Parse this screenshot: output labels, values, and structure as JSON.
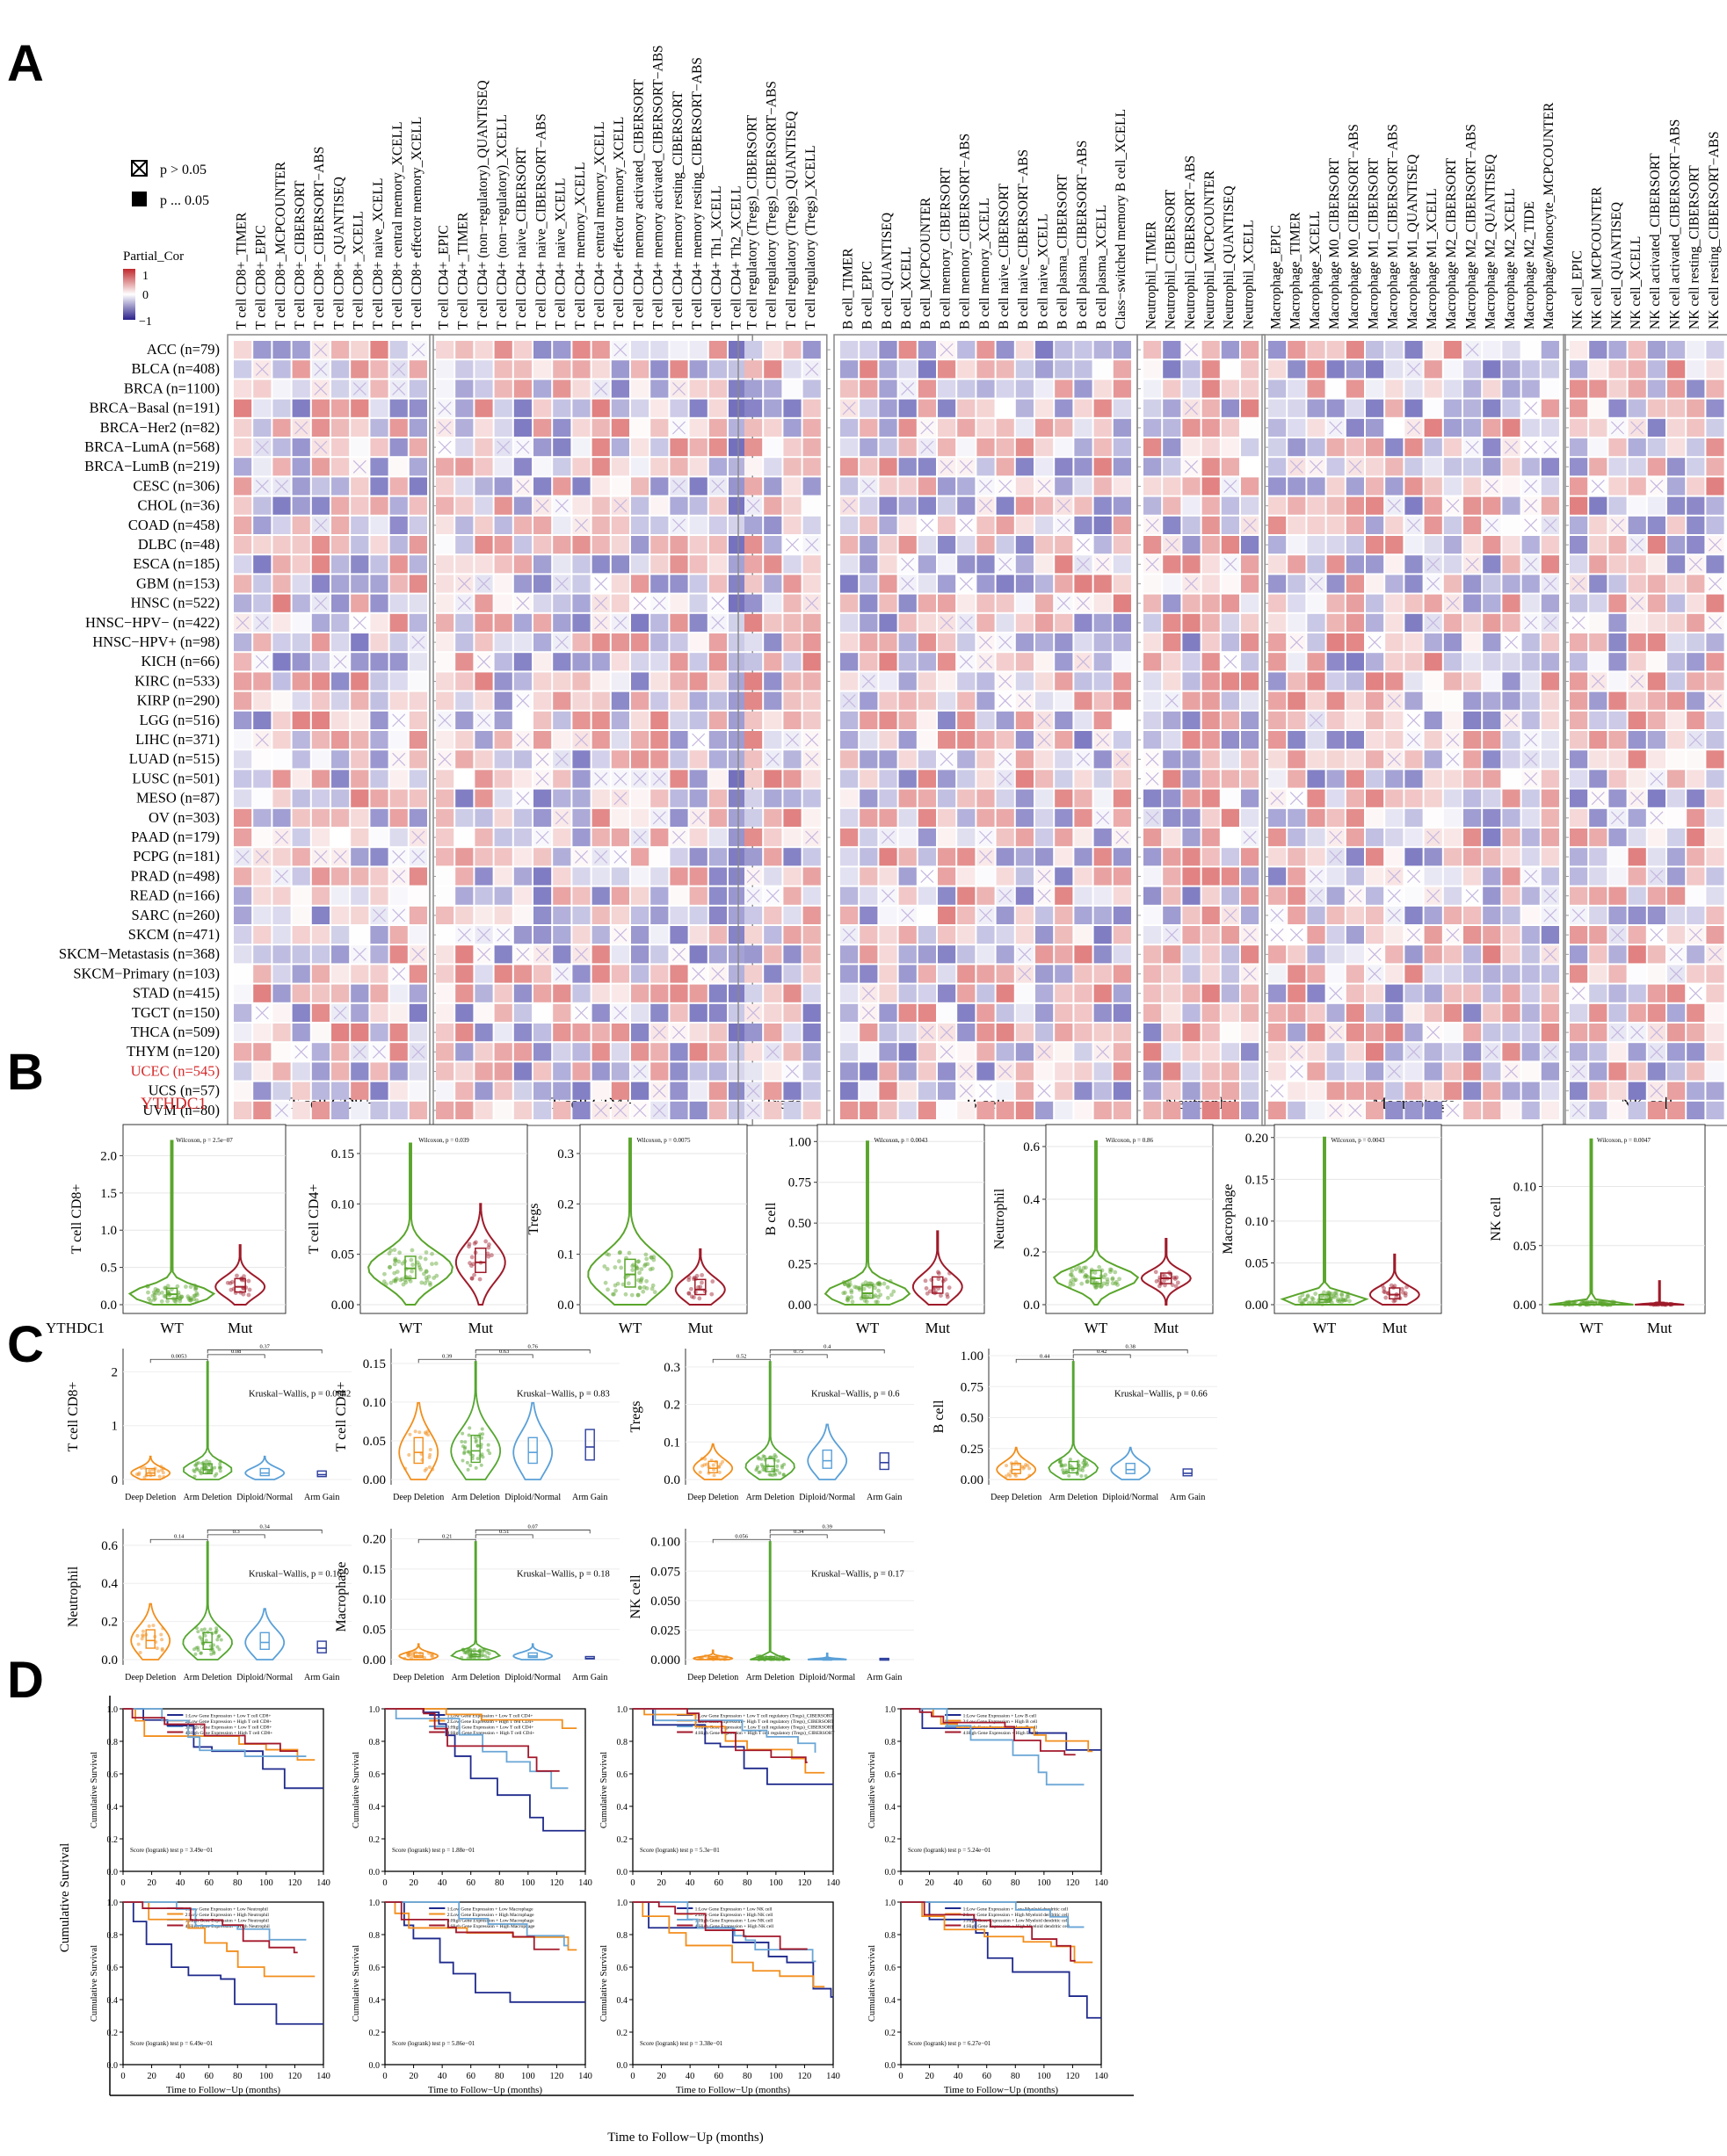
{
  "panel_letters": [
    "A",
    "B",
    "C",
    "D"
  ],
  "gene": "YTHDC1",
  "highlight_color": "#d62728",
  "panel_a": {
    "legend_sig": [
      "p > 0.05",
      "p ... 0.05"
    ],
    "legend_cor_title": "Partial_Cor",
    "legend_cor_ticks": [
      "1",
      "0",
      "−1"
    ],
    "colors": {
      "positive": "#d83a3a",
      "negative": "#4a2a9a",
      "neutral": "#ffffff"
    },
    "groups": [
      {
        "name": "T cell CD8+",
        "columns": [
          "T cell CD8+_TIMER",
          "T cell CD8+_EPIC",
          "T cell CD8+_MCPCOUNTER",
          "T cell CD8+_CIBERSORT",
          "T cell CD8+_CIBERSORT−ABS",
          "T cell CD8+_QUANTISEQ",
          "T cell CD8+_XCELL",
          "T cell CD8+ naive_XCELL",
          "T cell CD8+ central memory_XCELL",
          "T cell CD8+ effector memory_XCELL"
        ]
      },
      {
        "name": "T cell CD4+",
        "columns": [
          "T cell CD4+_EPIC",
          "T cell CD4+_TIMER",
          "T cell CD4+ (non−regulatory)_QUANTISEQ",
          "T cell CD4+ (non−regulatory)_XCELL",
          "T cell CD4+ naive_CIBERSORT",
          "T cell CD4+ naive_CIBERSORT−ABS",
          "T cell CD4+ naive_XCELL",
          "T cell CD4+ memory_XCELL",
          "T cell CD4+ central memory_XCELL",
          "T cell CD4+ effector memory_XCELL",
          "T cell CD4+ memory activated_CIBERSORT",
          "T cell CD4+ memory activated_CIBERSORT−ABS",
          "T cell CD4+ memory resting_CIBERSORT",
          "T cell CD4+ memory resting_CIBERSORT−ABS",
          "T cell CD4+ Th1_XCELL",
          "T cell CD4+ Th2_XCELL"
        ]
      },
      {
        "name": "Tregs",
        "columns": [
          "T cell regulatory (Tregs)_CIBERSORT",
          "T cell regulatory (Tregs)_CIBERSORT−ABS",
          "T cell regulatory (Tregs)_QUANTISEQ",
          "T cell regulatory (Tregs)_XCELL"
        ]
      },
      {
        "name": "B cell",
        "columns": [
          "B cell_TIMER",
          "B cell_EPIC",
          "B cell_QUANTISEQ",
          "B cell_XCELL",
          "B cell_MCPCOUNTER",
          "B cell memory_CIBERSORT",
          "B cell memory_CIBERSORT−ABS",
          "B cell memory_XCELL",
          "B cell naive_CIBERSORT",
          "B cell naive_CIBERSORT−ABS",
          "B cell naive_XCELL",
          "B cell plasma_CIBERSORT",
          "B cell plasma_CIBERSORT−ABS",
          "B cell plasma_XCELL",
          "Class−switched memory B cell_XCELL"
        ]
      },
      {
        "name": "Neutrophil",
        "columns": [
          "Neutrophil_TIMER",
          "Neutrophil_CIBERSORT",
          "Neutrophil_CIBERSORT−ABS",
          "Neutrophil_MCPCOUNTER",
          "Neutrophil_QUANTISEQ",
          "Neutrophil_XCELL"
        ]
      },
      {
        "name": "Macrophage",
        "columns": [
          "Macrophage_EPIC",
          "Macrophage_TIMER",
          "Macrophage_XCELL",
          "Macrophage M0_CIBERSORT",
          "Macrophage M0_CIBERSORT−ABS",
          "Macrophage M1_CIBERSORT",
          "Macrophage M1_CIBERSORT−ABS",
          "Macrophage M1_QUANTISEQ",
          "Macrophage M1_XCELL",
          "Macrophage M2_CIBERSORT",
          "Macrophage M2_CIBERSORT−ABS",
          "Macrophage M2_QUANTISEQ",
          "Macrophage M2_XCELL",
          "Macrophage M2_TIDE",
          "Macrophage/Monocyte_MCPCOUNTER"
        ]
      },
      {
        "name": "NK cell",
        "columns": [
          "NK cell_EPIC",
          "NK cell_MCPCOUNTER",
          "NK cell_QUANTISEQ",
          "NK cell_XCELL",
          "NK cell activated_CIBERSORT",
          "NK cell activated_CIBERSORT−ABS",
          "NK cell resting_CIBERSORT",
          "NK cell resting_CIBERSORT−ABS"
        ]
      }
    ],
    "rows": [
      "ACC (n=79)",
      "BLCA (n=408)",
      "BRCA (n=1100)",
      "BRCA−Basal (n=191)",
      "BRCA−Her2 (n=82)",
      "BRCA−LumA (n=568)",
      "BRCA−LumB (n=219)",
      "CESC (n=306)",
      "CHOL (n=36)",
      "COAD (n=458)",
      "DLBC (n=48)",
      "ESCA (n=185)",
      "GBM (n=153)",
      "HNSC (n=522)",
      "HNSC−HPV− (n=422)",
      "HNSC−HPV+ (n=98)",
      "KICH (n=66)",
      "KIRC (n=533)",
      "KIRP (n=290)",
      "LGG (n=516)",
      "LIHC (n=371)",
      "LUAD (n=515)",
      "LUSC (n=501)",
      "MESO (n=87)",
      "OV (n=303)",
      "PAAD (n=179)",
      "PCPG (n=181)",
      "PRAD (n=498)",
      "READ (n=166)",
      "SARC (n=260)",
      "SKCM (n=471)",
      "SKCM−Metastasis (n=368)",
      "SKCM−Primary (n=103)",
      "STAD (n=415)",
      "TGCT (n=150)",
      "THCA (n=509)",
      "THYM (n=120)",
      "UCEC (n=545)",
      "UCS (n=57)",
      "UVM (n=80)"
    ],
    "highlight_row": "UCEC (n=545)"
  },
  "panel_b": {
    "x_axis_label": "YTHDC1",
    "categories": [
      "WT",
      "Mut"
    ],
    "plots": [
      {
        "ylabel": "T cell CD8+",
        "ticks": [
          "0.0",
          "0.5",
          "1.0",
          "1.5",
          "2.0"
        ],
        "ylim": [
          0,
          2.3
        ],
        "pval": "Wilcoxon, p = 2.5e−07",
        "wt": {
          "median": 0.14,
          "q1": 0.08,
          "q3": 0.22,
          "max": 2.2
        },
        "mut": {
          "median": 0.24,
          "q1": 0.17,
          "q3": 0.35,
          "max": 0.8
        }
      },
      {
        "ylabel": "T cell CD4+",
        "ticks": [
          "0.00",
          "0.05",
          "0.10",
          "0.15"
        ],
        "ylim": [
          0,
          0.17
        ],
        "pval": "Wilcoxon, p = 0.039",
        "wt": {
          "median": 0.036,
          "q1": 0.026,
          "q3": 0.048,
          "max": 0.16
        },
        "mut": {
          "median": 0.042,
          "q1": 0.032,
          "q3": 0.056,
          "max": 0.1
        }
      },
      {
        "ylabel": "Tregs",
        "ticks": [
          "0.0",
          "0.1",
          "0.2",
          "0.3"
        ],
        "ylim": [
          0,
          0.34
        ],
        "pval": "Wilcoxon, p = 0.0075",
        "wt": {
          "median": 0.06,
          "q1": 0.035,
          "q3": 0.09,
          "max": 0.33
        },
        "mut": {
          "median": 0.03,
          "q1": 0.02,
          "q3": 0.05,
          "max": 0.11
        }
      },
      {
        "ylabel": "B cell",
        "ticks": [
          "0.00",
          "0.25",
          "0.50",
          "0.75",
          "1.00"
        ],
        "ylim": [
          0,
          1.05
        ],
        "pval": "Wilcoxon, p = 0.0043",
        "wt": {
          "median": 0.07,
          "q1": 0.04,
          "q3": 0.12,
          "max": 1.0
        },
        "mut": {
          "median": 0.11,
          "q1": 0.07,
          "q3": 0.17,
          "max": 0.45
        }
      },
      {
        "ylabel": "Neutrophil",
        "ticks": [
          "0.0",
          "0.2",
          "0.4",
          "0.6"
        ],
        "ylim": [
          0,
          0.65
        ],
        "pval": "Wilcoxon, p = 0.86",
        "wt": {
          "median": 0.1,
          "q1": 0.08,
          "q3": 0.13,
          "max": 0.62
        },
        "mut": {
          "median": 0.1,
          "q1": 0.08,
          "q3": 0.12,
          "max": 0.25
        }
      },
      {
        "ylabel": "Macrophage",
        "ticks": [
          "0.00",
          "0.05",
          "0.10",
          "0.15",
          "0.20"
        ],
        "ylim": [
          0,
          0.205
        ],
        "pval": "Wilcoxon, p = 0.0043",
        "wt": {
          "median": 0.006,
          "q1": 0.003,
          "q3": 0.012,
          "max": 0.2
        },
        "mut": {
          "median": 0.012,
          "q1": 0.007,
          "q3": 0.02,
          "max": 0.06
        }
      },
      {
        "ylabel": "NK cell",
        "ticks": [
          "0.00",
          "0.05",
          "0.10"
        ],
        "ylim": [
          0,
          0.145
        ],
        "pval": "Wilcoxon, p = 0.0047",
        "wt": {
          "median": 0.0,
          "q1": 0.0,
          "q3": 0.002,
          "max": 0.14
        },
        "mut": {
          "median": 0.0,
          "q1": 0.0,
          "q3": 0.001,
          "max": 0.02
        }
      }
    ]
  },
  "panel_c": {
    "categories": [
      "Deep Deletion",
      "Arm Deletion",
      "Diploid/Normal",
      "Arm Gain"
    ],
    "colors": [
      "#f28e1c",
      "#55a630",
      "#5aa0d8",
      "#2c3e9e"
    ],
    "plots": [
      {
        "ylabel": "T cell CD8+",
        "ticks": [
          "0",
          "1",
          "2"
        ],
        "ylim": [
          0,
          2.3
        ],
        "kw": "Kruskal−Wallis, p = 0.0042",
        "brackets": [
          "0.0053",
          "0.08",
          "0.37"
        ],
        "med": [
          0.12,
          0.18,
          0.12,
          0.09
        ]
      },
      {
        "ylabel": "T cell CD4+",
        "ticks": [
          "0.00",
          "0.05",
          "0.10",
          "0.15"
        ],
        "ylim": [
          0,
          0.16
        ],
        "kw": "Kruskal−Wallis, p = 0.83",
        "brackets": [
          "0.39",
          "0.63",
          "0.76"
        ],
        "med": [
          0.035,
          0.037,
          0.035,
          0.042
        ]
      },
      {
        "ylabel": "Tregs",
        "ticks": [
          "0.0",
          "0.1",
          "0.2",
          "0.3"
        ],
        "ylim": [
          0,
          0.33
        ],
        "kw": "Kruskal−Wallis, p = 0.6",
        "brackets": [
          "0.52",
          "0.75",
          "0.4"
        ],
        "med": [
          0.03,
          0.035,
          0.05,
          0.045
        ]
      },
      {
        "ylabel": "B cell",
        "ticks": [
          "0.00",
          "0.25",
          "0.50",
          "0.75",
          "1.00"
        ],
        "ylim": [
          0,
          1.0
        ],
        "kw": "Kruskal−Wallis, p = 0.66",
        "brackets": [
          "0.44",
          "0.42",
          "0.38"
        ],
        "med": [
          0.08,
          0.09,
          0.08,
          0.05
        ]
      },
      {
        "ylabel": "Neutrophil",
        "ticks": [
          "0.0",
          "0.2",
          "0.4",
          "0.6"
        ],
        "ylim": [
          0,
          0.65
        ],
        "kw": "Kruskal−Wallis, p = 0.16",
        "brackets": [
          "0.14",
          "0.3",
          "0.34"
        ],
        "med": [
          0.1,
          0.09,
          0.09,
          0.06
        ]
      },
      {
        "ylabel": "Macrophage",
        "ticks": [
          "0.00",
          "0.05",
          "0.10",
          "0.15",
          "0.20"
        ],
        "ylim": [
          0,
          0.205
        ],
        "kw": "Kruskal−Wallis, p = 0.18",
        "brackets": [
          "0.21",
          "0.51",
          "0.07"
        ],
        "med": [
          0.006,
          0.008,
          0.006,
          0.002
        ]
      },
      {
        "ylabel": "NK cell",
        "ticks": [
          "0.000",
          "0.025",
          "0.050",
          "0.075",
          "0.100"
        ],
        "ylim": [
          0,
          0.105
        ],
        "kw": "Kruskal−Wallis, p = 0.17",
        "brackets": [
          "0.056",
          "0.34",
          "0.39"
        ],
        "med": [
          0.001,
          0.001,
          0.0,
          0.0
        ]
      }
    ]
  },
  "panel_d": {
    "y_axis_label": "Cumulative Survival",
    "x_axis_label": "Time to Follow−Up (months)",
    "xticks": [
      "0",
      "20",
      "40",
      "60",
      "80",
      "100",
      "120",
      "140"
    ],
    "yticks": [
      "0.0",
      "0.2",
      "0.4",
      "0.6",
      "0.8",
      "1.0"
    ],
    "curve_colors": [
      "#1f2a8c",
      "#f28e1c",
      "#6aa6d6",
      "#a3182b"
    ],
    "plots": [
      {
        "legend": [
          "1:Low Gene Expression + Low T cell CD8+",
          "2:Low Gene Expression + High T cell CD8+",
          "3:High Gene Expression + Low T cell CD8+",
          "4:High Gene Expression + High T cell CD8+"
        ],
        "score": "Score (logrank) test p = 3.49e−01"
      },
      {
        "legend": [
          "1:Low Gene Expression + Low T cell CD4+",
          "2:Low Gene Expression + High T cell CD4+",
          "3:High Gene Expression + Low T cell CD4+",
          "4:High Gene Expression + High T cell CD4+"
        ],
        "score": "Score (logrank) test p = 1.88e−01"
      },
      {
        "legend": [
          "1:Low Gene Expression + Low T cell regulatory (Tregs)_CIBERSORT",
          "2:Low Gene Expression + High T cell regulatory (Tregs)_CIBERSORT",
          "3:High Gene Expression + Low T cell regulatory (Tregs)_CIBERSORT",
          "4:High Gene Expression + High T cell regulatory (Tregs)_CIBERSORT"
        ],
        "score": "Score (logrank) test p = 5.3e−01"
      },
      {
        "legend": [
          "1:Low Gene Expression + Low B cell",
          "2:Low Gene Expression + High B cell",
          "3:High Gene Expression + Low B cell",
          "4:High Gene Expression + High B cell"
        ],
        "score": "Score (logrank) test p = 5.24e−01"
      },
      {
        "legend": [
          "1:Low Gene Expression + Low Neutrophil",
          "2:Low Gene Expression + High Neutrophil",
          "3:High Gene Expression + Low Neutrophil",
          "4:High Gene Expression + High Neutrophil"
        ],
        "score": "Score (logrank) test p = 6.49e−01"
      },
      {
        "legend": [
          "1:Low Gene Expression + Low Macrophage",
          "2:Low Gene Expression + High Macrophage",
          "3:High Gene Expression + Low Macrophage",
          "4:High Gene Expression + High Macrophage"
        ],
        "score": "Score (logrank) test p = 5.86e−01"
      },
      {
        "legend": [
          "1:Low Gene Expression + Low NK cell",
          "2:Low Gene Expression + High NK cell",
          "3:High Gene Expression + Low NK cell",
          "4:High Gene Expression + High NK cell"
        ],
        "score": "Score (logrank) test p = 3.38e−01"
      },
      {
        "legend": [
          "1:Low Gene Expression + Low Myeloid dendritic cell",
          "2:Low Gene Expression + High Myeloid dendritic cell",
          "3:High Gene Expression + Low Myeloid dendritic cell",
          "4:High Gene Expression + High Myeloid dendritic cell"
        ],
        "score": "Score (logrank) test p = 6.27e−01"
      }
    ]
  },
  "chart_data": [
    {
      "type": "heatmap",
      "title": "",
      "value_name": "Partial_Cor",
      "range": [
        -1,
        1
      ],
      "rows_ref": "panel_a.rows",
      "columns_ref": "panel_a.groups"
    },
    {
      "type": "violin",
      "categories": [
        "WT",
        "Mut"
      ],
      "series_ref": "panel_b.plots"
    },
    {
      "type": "violin",
      "categories": [
        "Deep Deletion",
        "Arm Deletion",
        "Diploid/Normal",
        "Arm Gain"
      ],
      "series_ref": "panel_c.plots"
    },
    {
      "type": "line",
      "subtype": "kaplan-meier",
      "x_range": [
        0,
        140
      ],
      "y_range": [
        0,
        1
      ],
      "series_ref": "panel_d.plots"
    }
  ]
}
